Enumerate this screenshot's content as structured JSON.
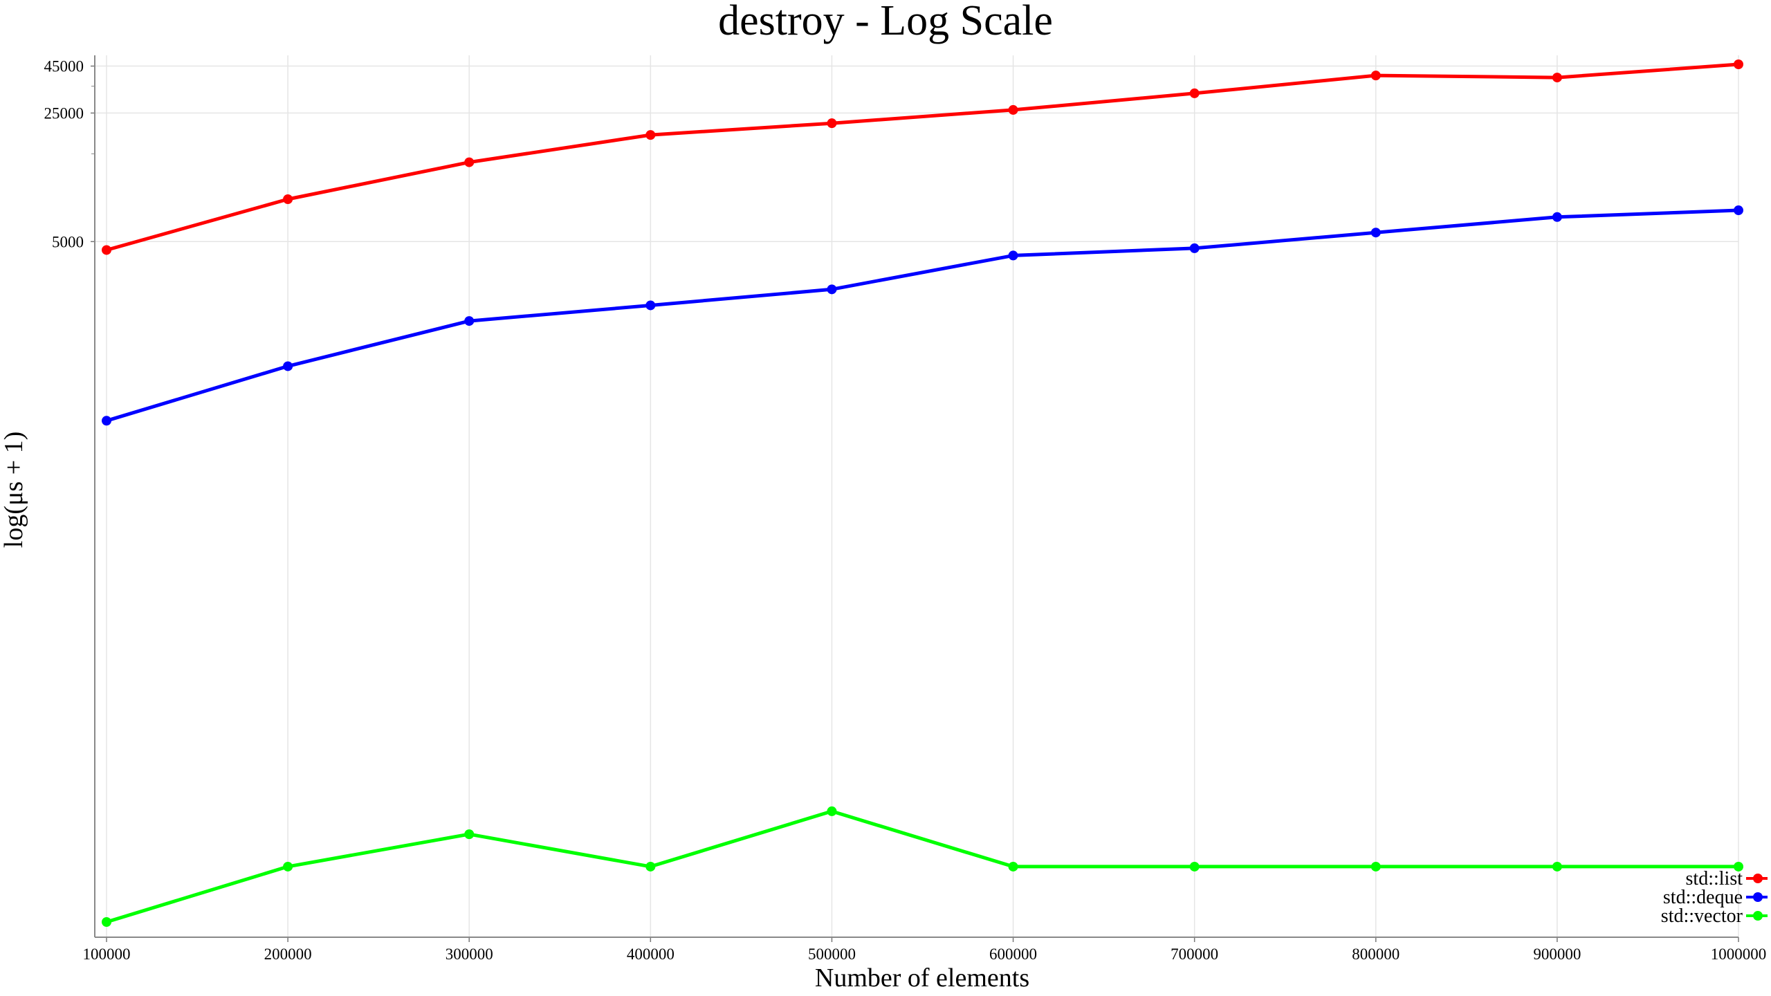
{
  "chart_data": {
    "type": "line",
    "title": "destroy - Log Scale",
    "xlabel": "Number of elements",
    "ylabel": "log(μs + 1)",
    "x": [
      100000,
      200000,
      300000,
      400000,
      500000,
      600000,
      700000,
      800000,
      900000,
      1000000
    ],
    "x_tick_labels": [
      "100000",
      "200000",
      "300000",
      "400000",
      "500000",
      "600000",
      "700000",
      "800000",
      "900000",
      1000000
    ],
    "y_scale": "log(y+1)",
    "y_ticks": [
      5000,
      25000,
      45000
    ],
    "y_tick_labels": [
      "5000",
      "25000",
      "45000"
    ],
    "xlim": [
      100000,
      1000000
    ],
    "ylim": [
      0,
      48000
    ],
    "grid": true,
    "legend_position": "bottom-right",
    "series": [
      {
        "name": "std::list",
        "color": "#ff0000",
        "values": [
          4500,
          8500,
          13500,
          19000,
          22000,
          26000,
          32000,
          40000,
          39000,
          46000
        ]
      },
      {
        "name": "std::deque",
        "color": "#0000ff",
        "values": [
          530,
          1050,
          1850,
          2250,
          2750,
          4200,
          4600,
          5600,
          6800,
          7400
        ]
      },
      {
        "name": "std::vector",
        "color": "#00ff00",
        "values": [
          0,
          1,
          2,
          1,
          3,
          1,
          1,
          1,
          1,
          1
        ]
      }
    ]
  }
}
